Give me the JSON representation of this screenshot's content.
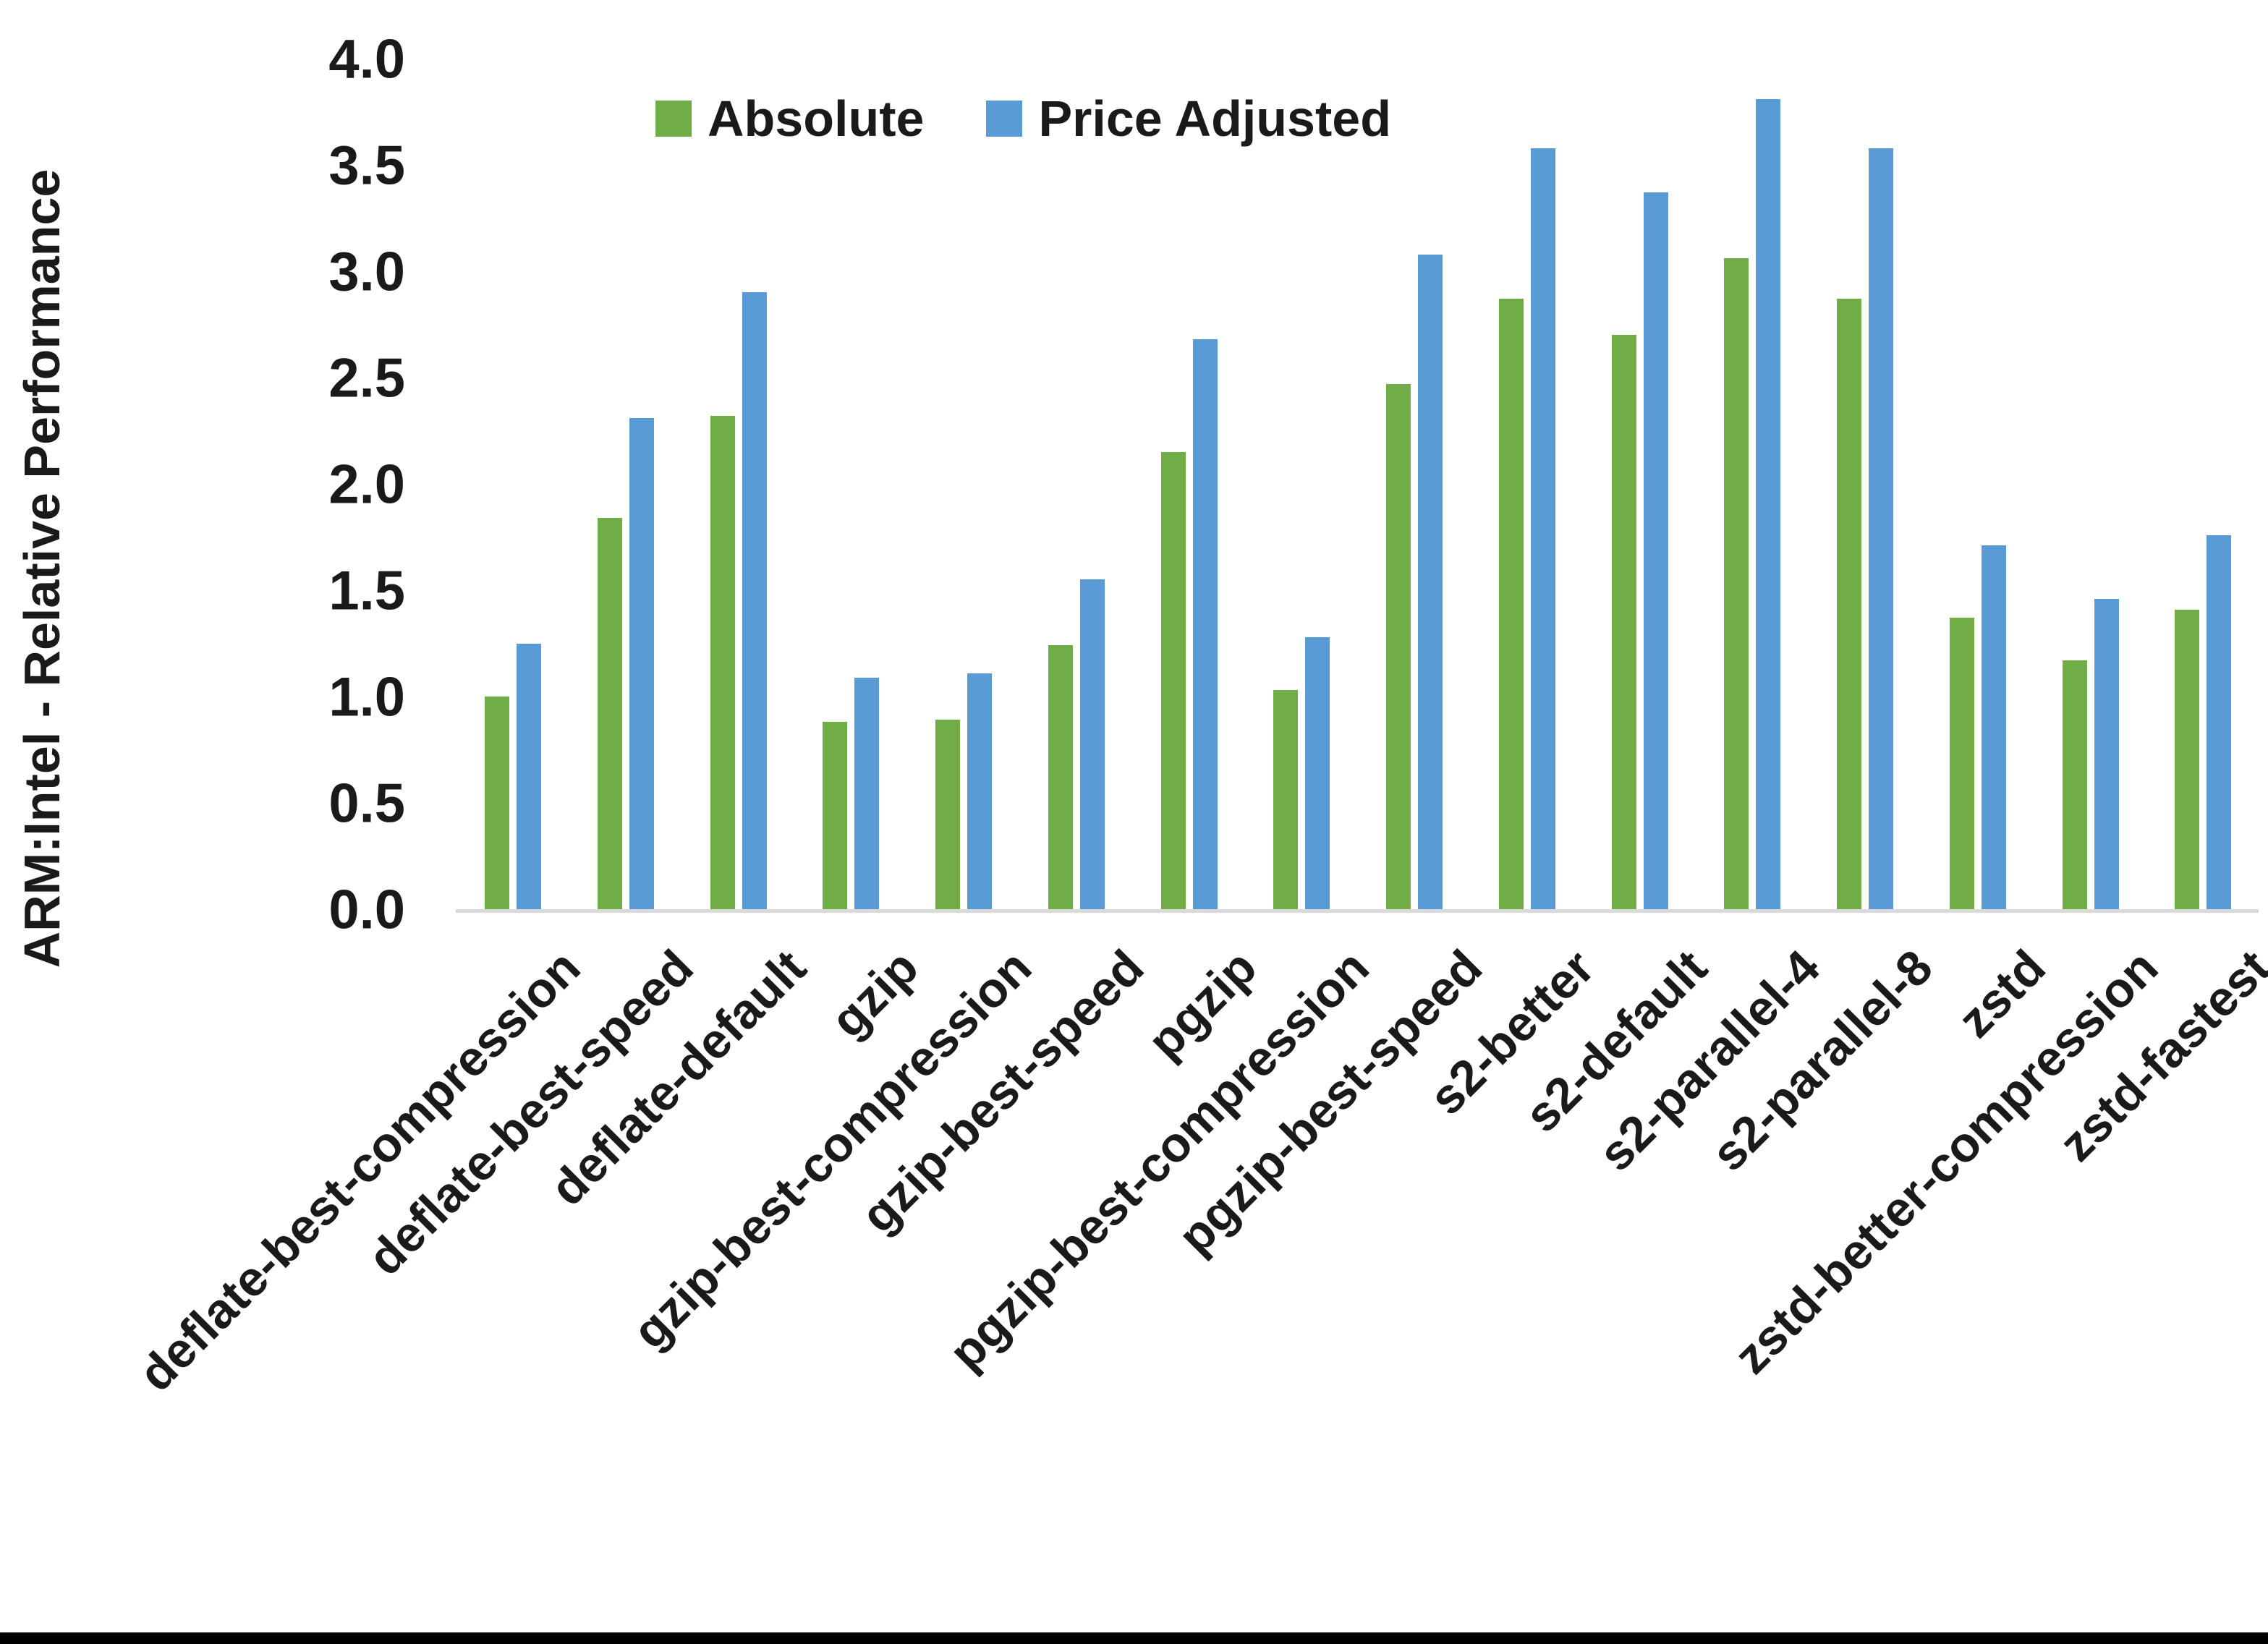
{
  "chart_data": {
    "type": "bar",
    "title": "",
    "xlabel": "",
    "ylabel": "ARM:Intel - Relative Performance",
    "ylim": [
      0.0,
      4.0
    ],
    "ytick_step": 0.5,
    "grid": false,
    "legend_position": "top-center",
    "categories": [
      "deflate-best-compression",
      "deflate-best-speed",
      "deflate-default",
      "gzip",
      "gzip-best-compression",
      "gzip-best-speed",
      "pgzip",
      "pgzip-best-compression",
      "pgzip-best-speed",
      "s2-better",
      "s2-default",
      "s2-parallel-4",
      "s2-parallel-8",
      "zstd",
      "zstd-better-compression",
      "zstd-fastest"
    ],
    "series": [
      {
        "name": "Absolute",
        "color": "#70AD47",
        "values": [
          1.01,
          1.85,
          2.33,
          0.89,
          0.9,
          1.25,
          2.16,
          1.04,
          2.48,
          2.88,
          2.71,
          3.07,
          2.88,
          1.38,
          1.18,
          1.42
        ]
      },
      {
        "name": "Price Adjusted",
        "color": "#5B9BD5",
        "values": [
          1.26,
          2.32,
          2.91,
          1.1,
          1.12,
          1.56,
          2.69,
          1.29,
          3.09,
          3.59,
          3.38,
          3.82,
          3.59,
          1.72,
          1.47,
          1.77
        ]
      }
    ]
  },
  "y_axis": {
    "title": "ARM:Intel - Relative Performance",
    "tick_labels": [
      "4.0",
      "3.5",
      "3.0",
      "2.5",
      "2.0",
      "1.5",
      "1.0",
      "0.5",
      "0.0"
    ]
  },
  "legend": {
    "items": [
      {
        "label": "Absolute",
        "color": "#70AD47"
      },
      {
        "label": "Price Adjusted",
        "color": "#5B9BD5"
      }
    ]
  },
  "colors": {
    "axis_line": "#D9D9D9",
    "text": "#1a1a1a",
    "background": "#FFFFFF",
    "bottom_border": "#000000"
  }
}
